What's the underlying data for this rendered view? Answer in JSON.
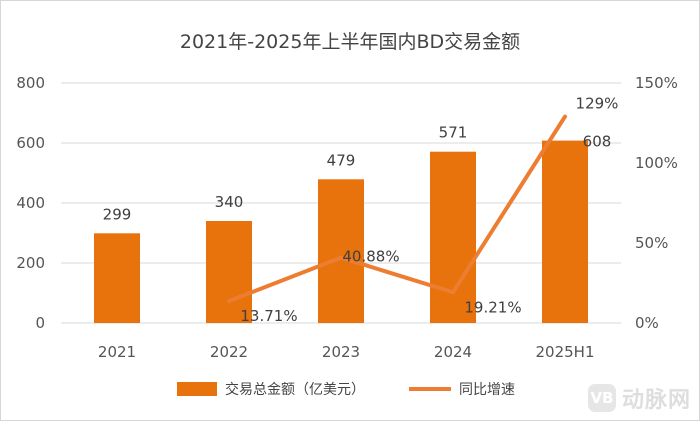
{
  "chart_data": {
    "type": "bar",
    "title": "2021年-2025年上半年国内BD交易金额",
    "categories": [
      "2021",
      "2022",
      "2023",
      "2024",
      "2025H1"
    ],
    "series": [
      {
        "name": "交易总金额（亿美元）",
        "type": "bar",
        "axis": "left",
        "values": [
          299,
          340,
          479,
          571,
          608
        ],
        "data_labels": [
          "299",
          "340",
          "479",
          "571",
          "608"
        ],
        "color": "#E8730C"
      },
      {
        "name": "同比增速",
        "type": "line",
        "axis": "right",
        "values": [
          null,
          13.71,
          40.88,
          19.21,
          129
        ],
        "data_labels": [
          "",
          "13.71%",
          "40.88%",
          "19.21%",
          "129%"
        ],
        "color": "#ED7D31"
      }
    ],
    "y_left": {
      "min": 0,
      "max": 800,
      "ticks": [
        "0",
        "200",
        "400",
        "600",
        "800"
      ]
    },
    "y_right": {
      "min": 0,
      "max": 150,
      "ticks": [
        "0%",
        "50%",
        "100%",
        "150%"
      ]
    },
    "grid": true,
    "legend": "bottom"
  },
  "watermark": {
    "badge": "VB",
    "text": "动脉网"
  }
}
